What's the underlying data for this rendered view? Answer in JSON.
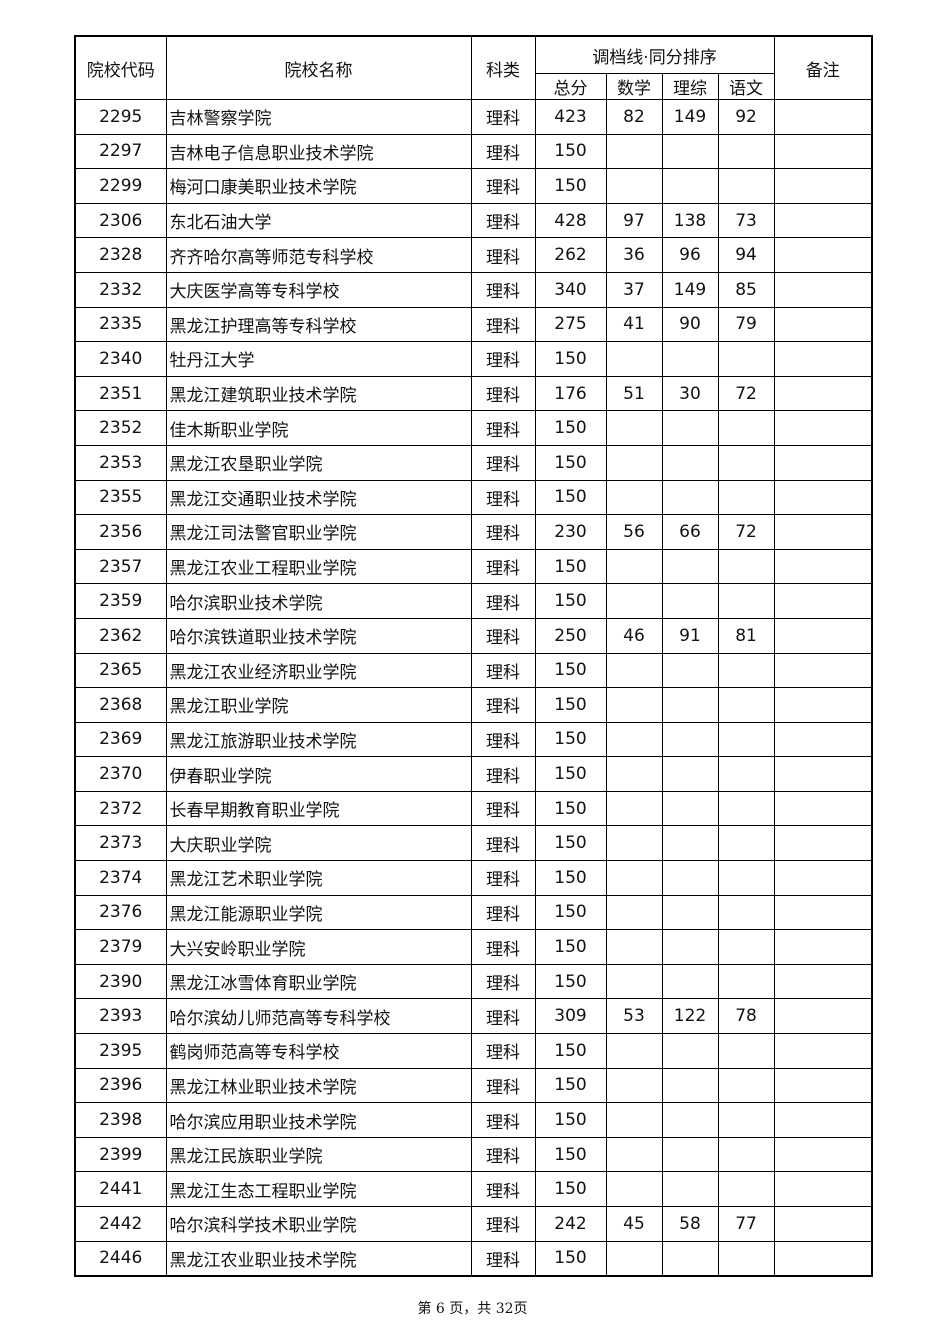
{
  "table": {
    "headers": [
      "院校代码",
      "院校名称",
      "科类",
      "调档线·同分排序",
      "备注"
    ],
    "subheaders": [
      "总分",
      "数学",
      "理综",
      "语文"
    ],
    "rows": [
      [
        2295,
        "吉林警察学院",
        "理科",
        423,
        82,
        149,
        92
      ],
      [
        2297,
        "吉林电子信息职业技术学院",
        "理科",
        150
      ],
      [
        2299,
        "梅河口康美职业技术学院",
        "理科",
        150
      ],
      [
        2306,
        "东北石油大学",
        "理科",
        428,
        97,
        138,
        73
      ],
      [
        2328,
        "齐齐哈尔高等师范专科学校",
        "理科",
        262,
        36,
        96,
        94
      ],
      [
        2332,
        "大庆医学高等专科学校",
        "理科",
        340,
        37,
        149,
        85
      ],
      [
        2335,
        "黑龙江护理高等专科学校",
        "理科",
        275,
        41,
        90,
        79
      ],
      [
        2340,
        "牡丹江大学",
        "理科",
        150
      ],
      [
        2351,
        "黑龙江建筑职业技术学院",
        "理科",
        176,
        51,
        30,
        72
      ],
      [
        2352,
        "佳木斯职业学院",
        "理科",
        150
      ],
      [
        2353,
        "黑龙江农垦职业学院",
        "理科",
        150
      ],
      [
        2355,
        "黑龙江交通职业技术学院",
        "理科",
        150
      ],
      [
        2356,
        "黑龙江司法警官职业学院",
        "理科",
        230,
        56,
        66,
        72
      ],
      [
        2357,
        "黑龙江农业工程职业学院",
        "理科",
        150
      ],
      [
        2359,
        "哈尔滨职业技术学院",
        "理科",
        150
      ],
      [
        2362,
        "哈尔滨铁道职业技术学院",
        "理科",
        250,
        46,
        91,
        81
      ],
      [
        2365,
        "黑龙江农业经济职业学院",
        "理科",
        150
      ],
      [
        2368,
        "黑龙江职业学院",
        "理科",
        150
      ],
      [
        2369,
        "黑龙江旅游职业技术学院",
        "理科",
        150
      ],
      [
        2370,
        "伊春职业学院",
        "理科",
        150
      ],
      [
        2372,
        "长春早期教育职业学院",
        "理科",
        150
      ],
      [
        2373,
        "大庆职业学院",
        "理科",
        150
      ],
      [
        2374,
        "黑龙江艺术职业学院",
        "理科",
        150
      ],
      [
        2376,
        "黑龙江能源职业学院",
        "理科",
        150
      ],
      [
        2379,
        "大兴安岭职业学院",
        "理科",
        150
      ],
      [
        2390,
        "黑龙江冰雪体育职业学院",
        "理科",
        150
      ],
      [
        2393,
        "哈尔滨幼儿师范高等专科学校",
        "理科",
        309,
        53,
        122,
        78
      ],
      [
        2395,
        "鹤岗师范高等专科学校",
        "理科",
        150
      ],
      [
        2396,
        "黑龙江林业职业技术学院",
        "理科",
        150
      ],
      [
        2398,
        "哈尔滨应用职业技术学院",
        "理科",
        150
      ],
      [
        2399,
        "黑龙江民族职业学院",
        "理科",
        150
      ],
      [
        2441,
        "黑龙江生态工程职业学院",
        "理科",
        150
      ],
      [
        2442,
        "哈尔滨科学技术职业学院",
        "理科",
        242,
        45,
        58,
        77
      ],
      [
        2446,
        "黑龙江农业职业技术学院",
        "理科",
        150
      ]
    ]
  },
  "footer": "第 6 页，共 32页"
}
